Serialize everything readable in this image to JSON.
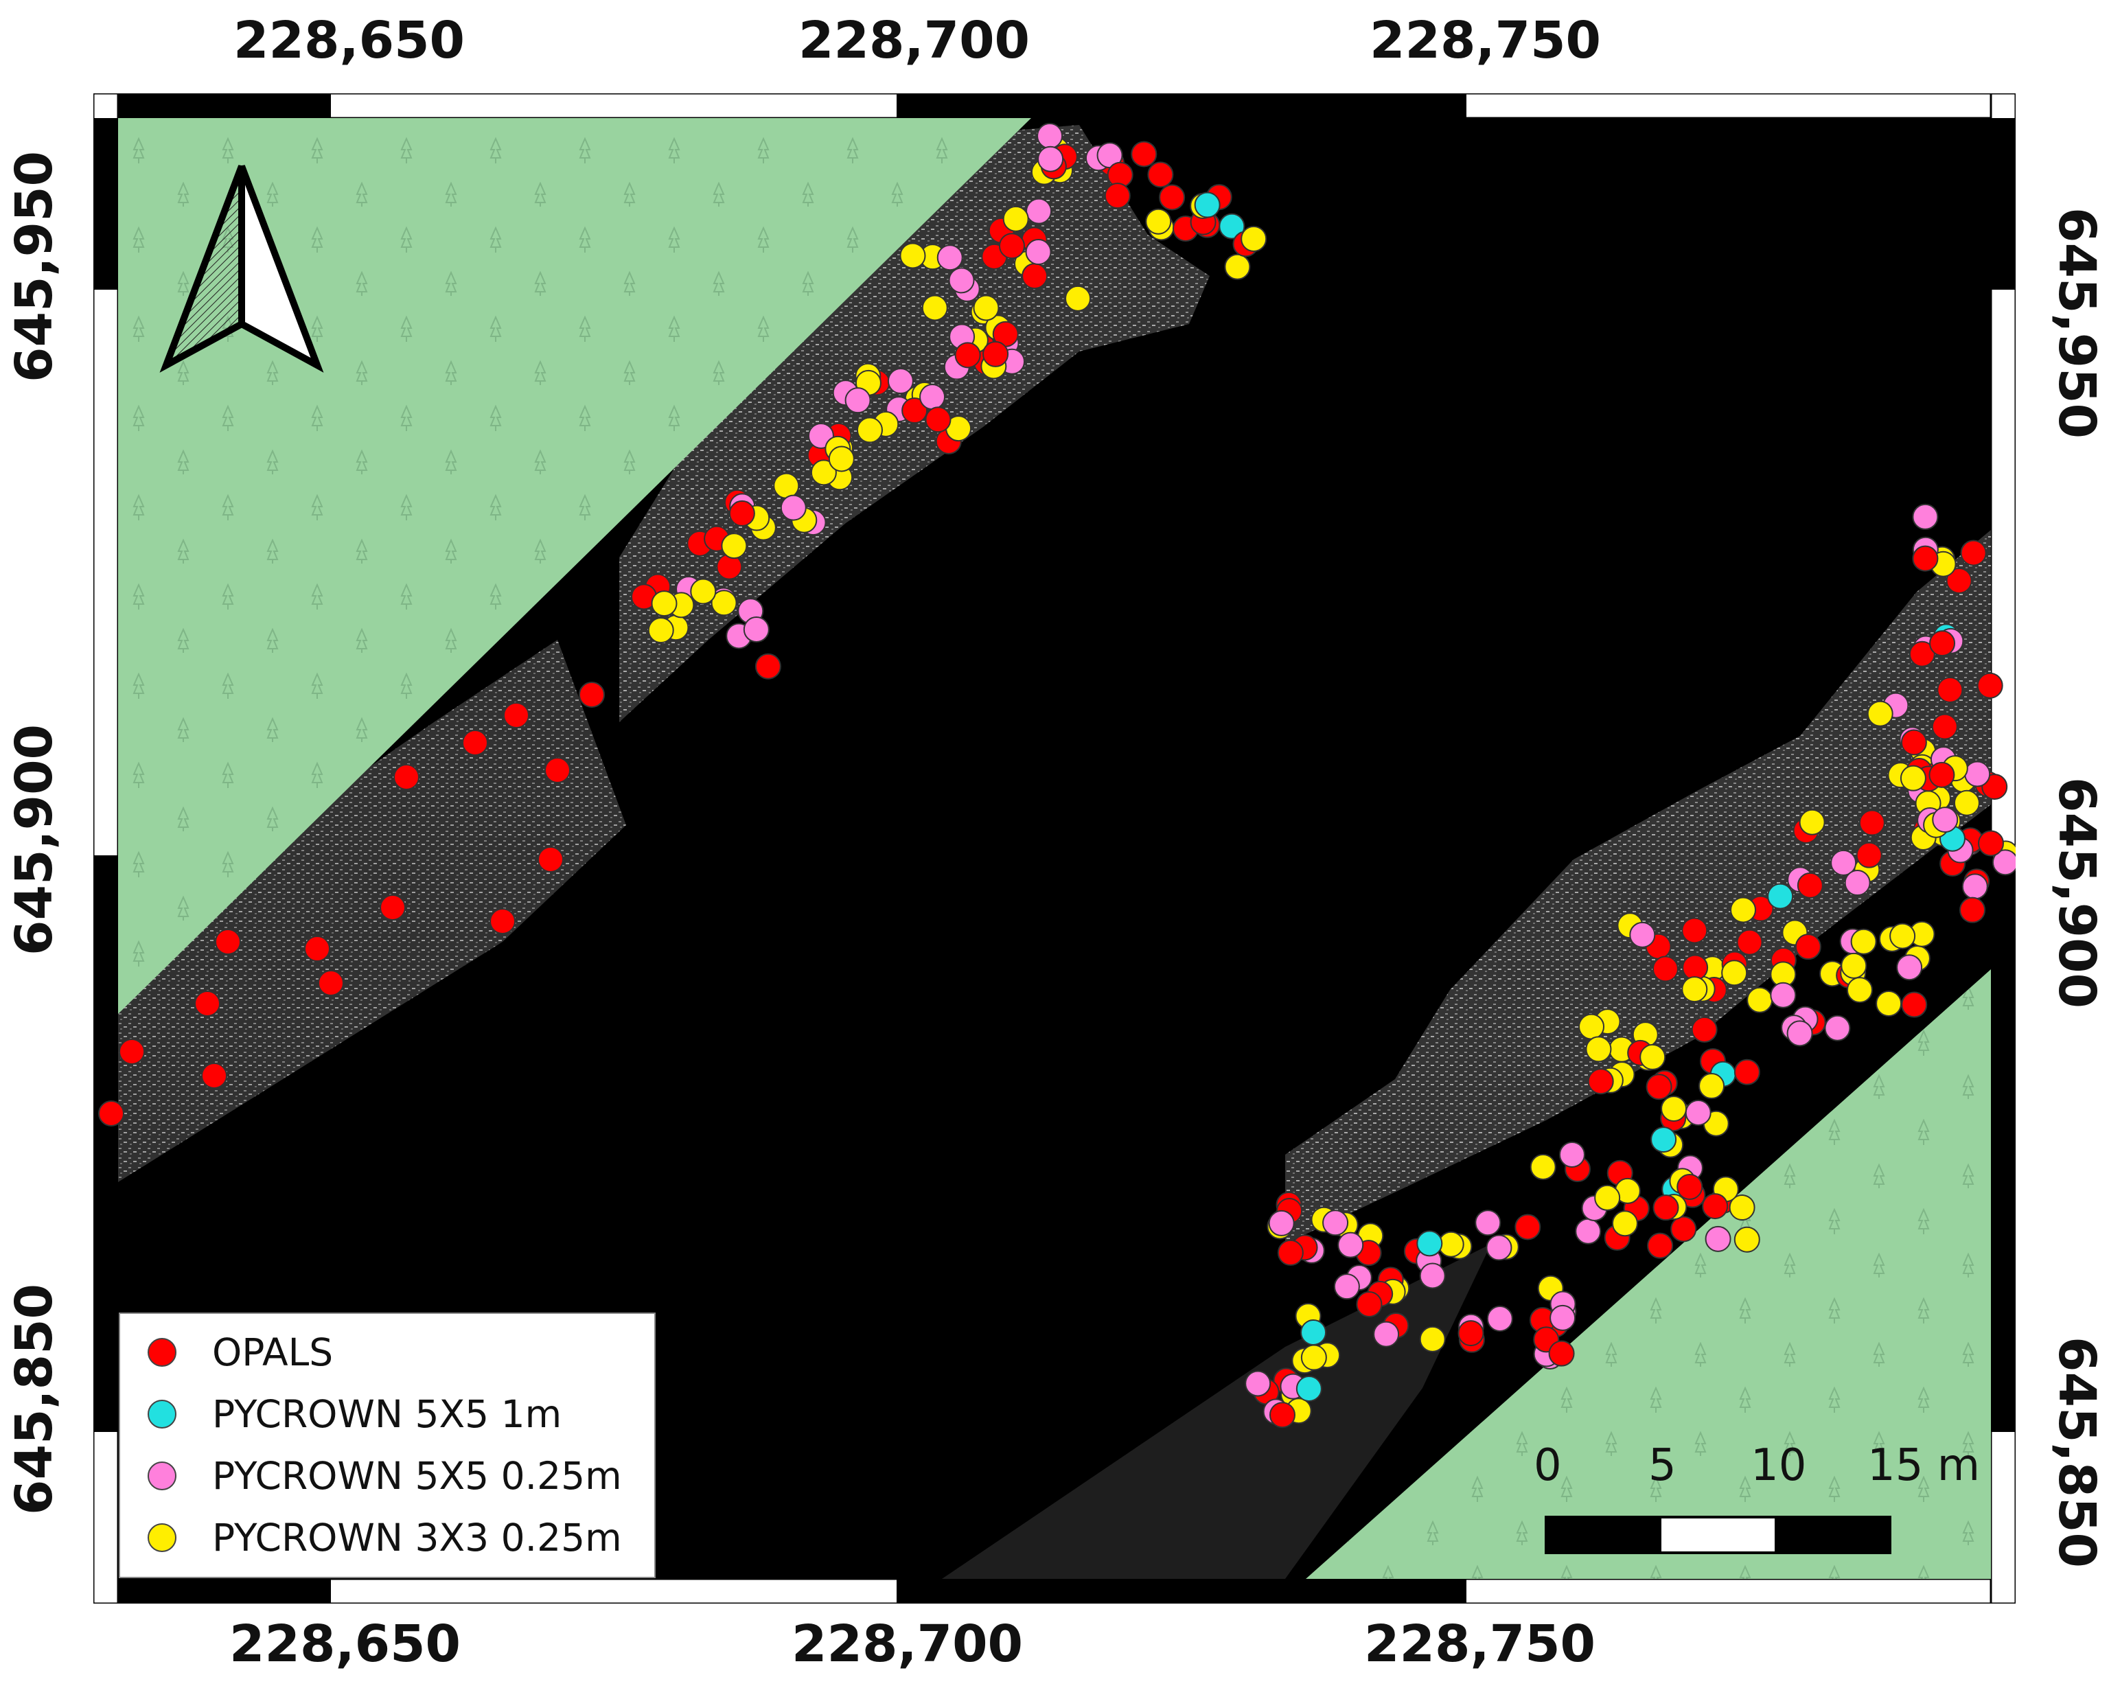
{
  "map": {
    "x_labels_top": [
      "228,650",
      "228,700",
      "228,750"
    ],
    "x_labels_bottom": [
      "228,650",
      "228,700",
      "228,750"
    ],
    "y_labels_left": [
      "645,950",
      "645,900",
      "645,850"
    ],
    "y_labels_right": [
      "645,950",
      "645,900",
      "645,850"
    ],
    "north_arrow": "north-arrow-icon",
    "legend": [
      {
        "label": "OPALS",
        "color": "#ff0000"
      },
      {
        "label": "PYCROWN 5X5 1m",
        "color": "#22e0e0"
      },
      {
        "label": "PYCROWN 5X5 0.25m",
        "color": "#ff80dc"
      },
      {
        "label": "PYCROWN 3X3 0.25m",
        "color": "#ffee00"
      }
    ],
    "scale_bar": {
      "labels": [
        "0",
        "5",
        "10",
        "15 m"
      ]
    },
    "colors": {
      "background": "#000000",
      "forest_mask": "#99d39f",
      "canopy": "#5a5a5a",
      "frame": "#000000"
    }
  }
}
